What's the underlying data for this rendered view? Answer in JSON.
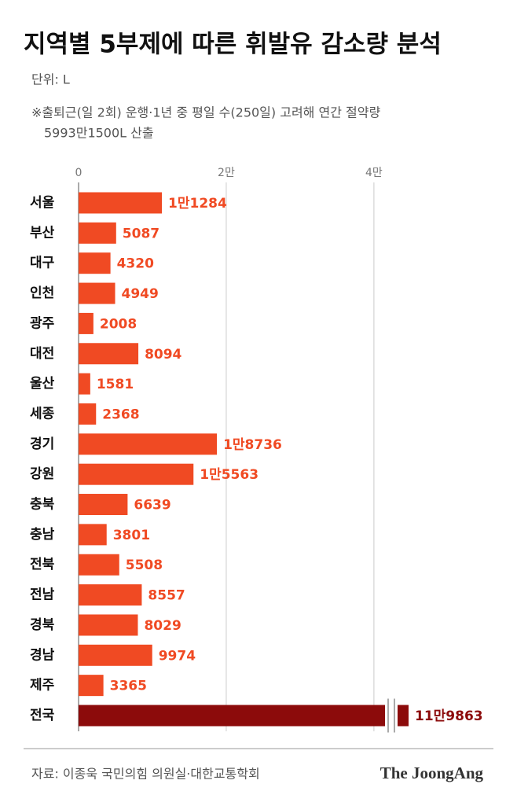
{
  "chart_data": {
    "type": "hbar",
    "title": "지역별 5부제에 따른 휘발유 감소량 분석",
    "subtitle": "단위: L",
    "note": [
      "※출퇴근(일 2회) 운행·1년 중 평일 수(250일) 고려해 연간 절약량",
      "5993만1500L 산출"
    ],
    "source": "자료: 이종욱 국민의힘 의원실·대한교통학회",
    "logo": "The JoongAng",
    "categories": [
      "서울",
      "부산",
      "대구",
      "인천",
      "광주",
      "대전",
      "울산",
      "세종",
      "경기",
      "강원",
      "충북",
      "충남",
      "전북",
      "전남",
      "경북",
      "경남",
      "제주",
      "전국"
    ],
    "values": [
      11284,
      5087,
      4320,
      4949,
      2008,
      8094,
      1581,
      2368,
      18736,
      15563,
      6639,
      3801,
      5508,
      8557,
      8029,
      9974,
      3365,
      119863
    ],
    "value_labels": [
      "1만1284",
      "5087",
      "4320",
      "4949",
      "2008",
      "8094",
      "1581",
      "2368",
      "1만8736",
      "1만5563",
      "6639",
      "3801",
      "5508",
      "8557",
      "8029",
      "9974",
      "3365",
      "11만9863"
    ],
    "colors": [
      "#f04a23",
      "#f04a23",
      "#f04a23",
      "#f04a23",
      "#f04a23",
      "#f04a23",
      "#f04a23",
      "#f04a23",
      "#f04a23",
      "#f04a23",
      "#f04a23",
      "#f04a23",
      "#f04a23",
      "#f04a23",
      "#f04a23",
      "#f04a23",
      "#f04a23",
      "#8c0b0b"
    ],
    "xlim": [
      0,
      41500
    ],
    "xticks": [
      0,
      {
        "value": 20000,
        "label": "2만"
      },
      {
        "value": 40000,
        "label": "4만"
      }
    ],
    "axis_break": true,
    "grid": true
  }
}
